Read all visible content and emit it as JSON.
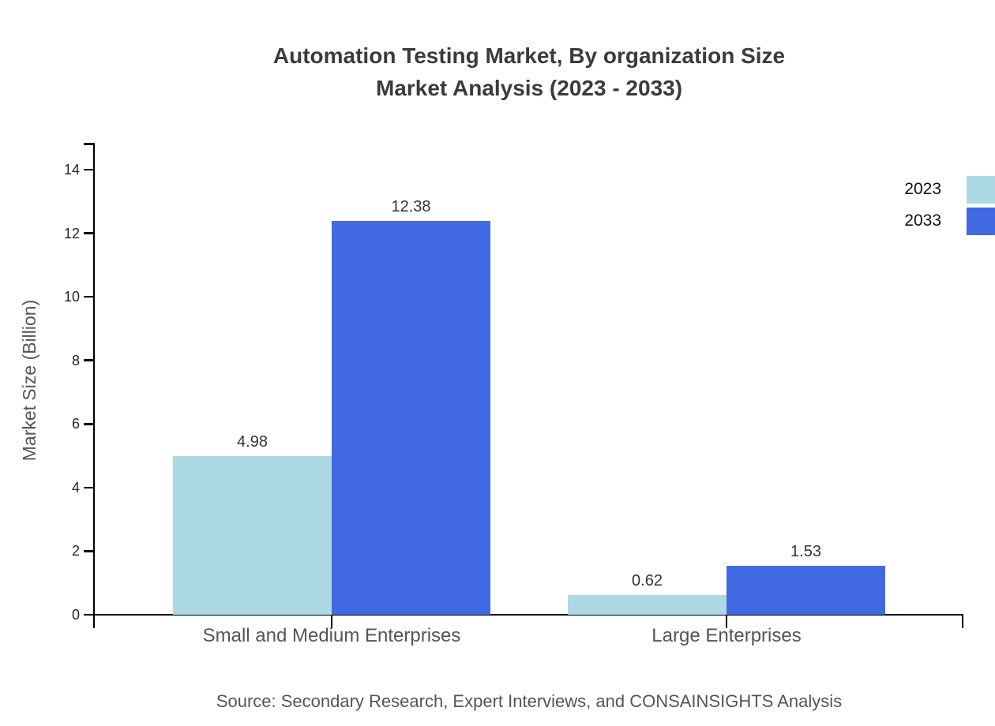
{
  "chart_data": {
    "type": "bar",
    "title": "Automation Testing Market, By organization Size Market Analysis (2023 - 2033)",
    "title_lines": [
      "Automation Testing Market, By organization Size",
      "Market Analysis (2023 - 2033)"
    ],
    "categories": [
      "Small and Medium Enterprises",
      "Large Enterprises"
    ],
    "series": [
      {
        "name": "2023",
        "color": "#ADD8E6",
        "values": [
          4.98,
          0.62
        ]
      },
      {
        "name": "2033",
        "color": "#4169E1",
        "values": [
          12.38,
          1.53
        ]
      }
    ],
    "xlabel": "",
    "ylabel": "Market Size (Billion)",
    "ylim": [
      0,
      15
    ],
    "y_ticks": [
      0,
      2,
      4,
      6,
      8,
      10,
      12,
      14
    ],
    "grid": false,
    "bar_value_labels_shown": true,
    "legend_position": "top-right-outside",
    "source_note": "Source: Secondary Research, Expert Interviews, and CONSAINSIGHTS Analysis"
  },
  "colors": {
    "axis": "#000000",
    "title_text": "#3b3b3b",
    "tick_text": "#262626",
    "category_text": "#555555",
    "value_text": "#333333",
    "background": "#ffffff"
  }
}
